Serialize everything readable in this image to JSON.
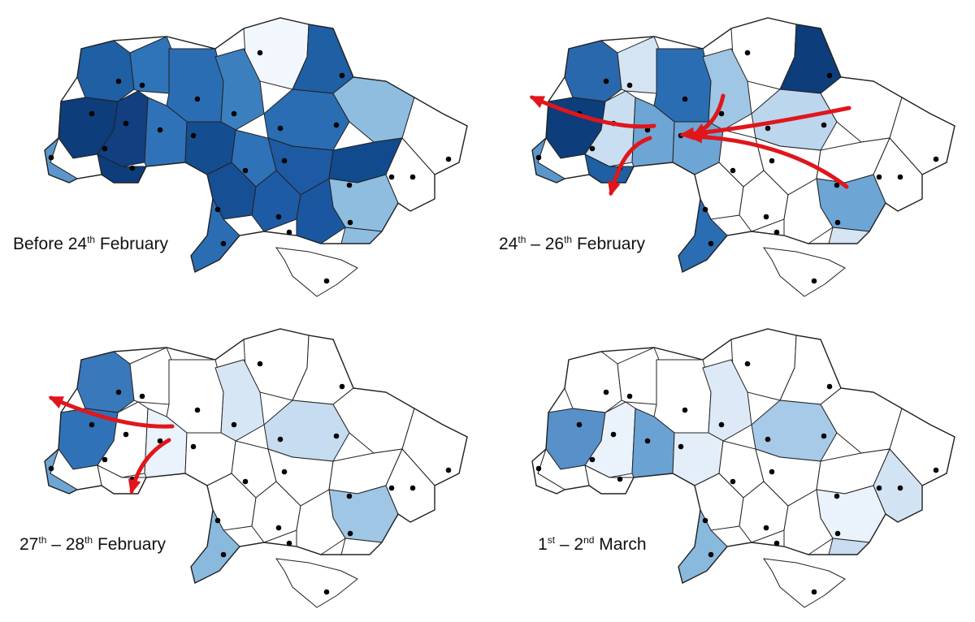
{
  "figure": {
    "panels": [
      {
        "id": "p1",
        "caption": {
          "pre": "Before 24",
          "sup1": "th",
          "mid": " February",
          "sup2": "",
          "post": ""
        },
        "fills": [
          "#1f5fa3",
          "#2f74b8",
          "#0d3d7a",
          "#123f80",
          "#2a6db3",
          "#f2f7fd",
          "#3b7fbf",
          "#2f72b8",
          "#144e90",
          "#1f5fa3",
          "#2a6db3",
          "#8fbde0",
          "#ffffff",
          "#2f72b8",
          "#1d5aa3",
          "#114a8d",
          "#0d3d7a",
          "#174f94",
          "#1d5ba5",
          "#8fbde0",
          "#ffffff",
          "#1a57a0",
          "#2a6db3",
          "#8fbde0",
          "#ffffff",
          "#ffffff",
          "#5b97cc"
        ],
        "arrows": []
      },
      {
        "id": "p2",
        "caption": {
          "pre": "24",
          "sup1": "th",
          "mid": " – 26",
          "sup2": "th",
          "post": " February"
        },
        "fills": [
          "#2a68ad",
          "#d4e4f3",
          "#0d3d7a",
          "#c9dff1",
          "#2a6db3",
          "#ffffff",
          "#9fc6e4",
          "#6da5d5",
          "#6da5d5",
          "#0d3d7a",
          "#bcd6ee",
          "#ffffff",
          "#ffffff",
          "#ffffff",
          "#ffffff",
          "#ffffff",
          "#1f5fa3",
          "#ffffff",
          "#ffffff",
          "#6da5d5",
          "#ffffff",
          "#ffffff",
          "#2a6db3",
          "#d4e4f3",
          "#ffffff",
          "#ffffff",
          "#5b97cc"
        ],
        "arrows": [
          "M 1045,133 C 960,150 900,160 840,166",
          "M 1042,230 C 990,190 920,170 850,168",
          "M 890,118 C 885,140 875,155 855,166",
          "M 805,155 C 760,160 700,140 655,120",
          "M 800,170 C 770,180 760,210 752,238"
        ]
      },
      {
        "id": "p3",
        "caption": {
          "pre": "27",
          "sup1": "th",
          "mid": " – 28",
          "sup2": "th",
          "post": " February"
        },
        "fills": [
          "#3a78bc",
          "#ffffff",
          "#2f72b8",
          "#ffffff",
          "#ffffff",
          "#ffffff",
          "#d7e6f5",
          "#eaf2fb",
          "#ffffff",
          "#ffffff",
          "#c6dcf0",
          "#ffffff",
          "#ffffff",
          "#ffffff",
          "#ffffff",
          "#ffffff",
          "#ffffff",
          "#ffffff",
          "#ffffff",
          "#9fc6e4",
          "#ffffff",
          "#ffffff",
          "#8ab9de",
          "#ffffff",
          "#ffffff",
          "#ffffff",
          "#6da5d5"
        ],
        "arrows": [
          "M 212,525 C 170,527 120,515 63,490",
          "M 208,542 C 185,555 170,575 162,605"
        ]
      },
      {
        "id": "p4",
        "caption": {
          "pre": "1",
          "sup1": "st",
          "mid": " – 2",
          "sup2": "nd",
          "post": " March"
        },
        "fills": [
          "#ffffff",
          "#ffffff",
          "#5890c9",
          "#eaf2fb",
          "#ffffff",
          "#ffffff",
          "#dde9f6",
          "#6aa2d3",
          "#e4eef9",
          "#ffffff",
          "#a6cae7",
          "#ffffff",
          "#ffffff",
          "#ffffff",
          "#ffffff",
          "#ffffff",
          "#ffffff",
          "#ffffff",
          "#ffffff",
          "#eaf2fb",
          "#d2e3f4",
          "#ffffff",
          "#8ab9de",
          "#c9dcf0",
          "#ffffff",
          "#ffffff",
          "#ffffff"
        ],
        "arrows": []
      }
    ]
  }
}
